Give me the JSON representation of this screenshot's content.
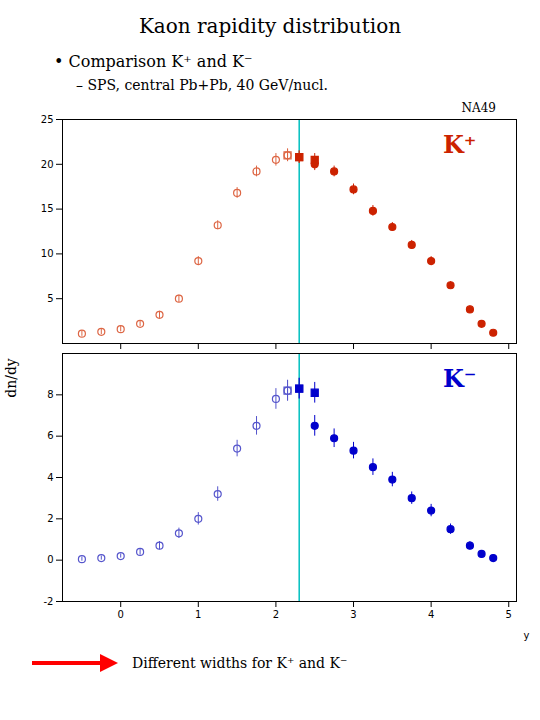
{
  "chart_data": [
    {
      "type": "scatter",
      "title": "Kaon rapidity distribution",
      "subtitle": [
        "• Comparison K⁺ and K⁻",
        "– SPS, central Pb+Pb, 40 GeV/nucl."
      ],
      "annotations": [
        "NA49"
      ],
      "panel_label": {
        "text": "K⁺",
        "color": "#cc2200"
      },
      "ylabel": "dn/dy",
      "xlim": [
        -0.75,
        5.1
      ],
      "xticks": [
        0,
        1,
        2,
        3,
        4,
        5
      ],
      "ylim": [
        0,
        25
      ],
      "yticks": [
        5,
        10,
        15,
        20,
        25
      ],
      "tick_labels": "y",
      "grid": false,
      "reference_lines": [
        {
          "x": 2.3,
          "color": "#00bfbf"
        }
      ],
      "series": [
        {
          "marker": "open_circle",
          "color": "#dd6644",
          "x": [
            -0.5,
            -0.25,
            0.0,
            0.25,
            0.5,
            0.75,
            1.0,
            1.25,
            1.5,
            1.75,
            2.0,
            2.15
          ],
          "values": [
            1.1,
            1.3,
            1.6,
            2.2,
            3.2,
            5.0,
            9.2,
            13.2,
            16.8,
            19.2,
            20.5,
            21.0
          ],
          "errors": [
            0.3,
            0.3,
            0.3,
            0.3,
            0.4,
            0.4,
            0.5,
            0.5,
            0.6,
            0.6,
            0.7,
            0.7
          ]
        },
        {
          "marker": "open_square",
          "color": "#dd6644",
          "x": [
            2.15,
            2.3
          ],
          "values": [
            21.0,
            20.8
          ],
          "errors": [
            0.7,
            0.7
          ]
        },
        {
          "marker": "square",
          "color": "#cc2200",
          "x": [
            2.3,
            2.5
          ],
          "values": [
            20.8,
            20.5
          ],
          "errors": [
            0.7,
            0.7
          ]
        },
        {
          "marker": "circle",
          "color": "#cc2200",
          "x": [
            2.5,
            2.75,
            3.0,
            3.25,
            3.5,
            3.75,
            4.0,
            4.25,
            4.5,
            4.65,
            4.8
          ],
          "values": [
            20.0,
            19.2,
            17.2,
            14.8,
            13.0,
            11.0,
            9.2,
            6.5,
            3.8,
            2.2,
            1.2
          ],
          "errors": [
            0.7,
            0.6,
            0.6,
            0.6,
            0.5,
            0.5,
            0.5,
            0.4,
            0.4,
            0.3,
            0.3
          ]
        }
      ]
    },
    {
      "type": "scatter",
      "panel_label": {
        "text": "K⁻",
        "color": "#0000cc"
      },
      "xlabel": "y",
      "xlim": [
        -0.75,
        5.1
      ],
      "xticks": [
        0,
        1,
        2,
        3,
        4,
        5
      ],
      "ylim": [
        -2,
        10
      ],
      "yticks": [
        -2,
        0,
        2,
        4,
        6,
        8
      ],
      "grid": false,
      "reference_lines": [
        {
          "x": 2.3,
          "color": "#00bfbf"
        }
      ],
      "caption": "Different widths for K⁺ and K⁻",
      "caption_arrow_color": "red",
      "series": [
        {
          "marker": "open_circle",
          "color": "#5555cc",
          "x": [
            -0.5,
            -0.25,
            0.0,
            0.25,
            0.5,
            0.75,
            1.0,
            1.25,
            1.5,
            1.75,
            2.0,
            2.15
          ],
          "values": [
            0.05,
            0.1,
            0.2,
            0.4,
            0.7,
            1.3,
            2.0,
            3.2,
            5.4,
            6.5,
            7.8,
            8.2
          ],
          "errors": [
            0.1,
            0.1,
            0.1,
            0.15,
            0.2,
            0.25,
            0.3,
            0.35,
            0.4,
            0.45,
            0.5,
            0.5
          ]
        },
        {
          "marker": "open_square",
          "color": "#5555cc",
          "x": [
            2.15,
            2.3
          ],
          "values": [
            8.2,
            8.3
          ],
          "errors": [
            0.5,
            0.5
          ]
        },
        {
          "marker": "square",
          "color": "#0000cc",
          "x": [
            2.3,
            2.5
          ],
          "values": [
            8.3,
            8.1
          ],
          "errors": [
            0.5,
            0.5
          ]
        },
        {
          "marker": "circle",
          "color": "#0000cc",
          "x": [
            2.5,
            2.75,
            3.0,
            3.25,
            3.5,
            3.75,
            4.0,
            4.25,
            4.5,
            4.65,
            4.8
          ],
          "values": [
            6.5,
            5.9,
            5.3,
            4.5,
            3.9,
            3.0,
            2.4,
            1.5,
            0.7,
            0.3,
            0.1
          ],
          "errors": [
            0.5,
            0.45,
            0.4,
            0.4,
            0.35,
            0.3,
            0.3,
            0.25,
            0.2,
            0.15,
            0.1
          ]
        }
      ]
    }
  ]
}
